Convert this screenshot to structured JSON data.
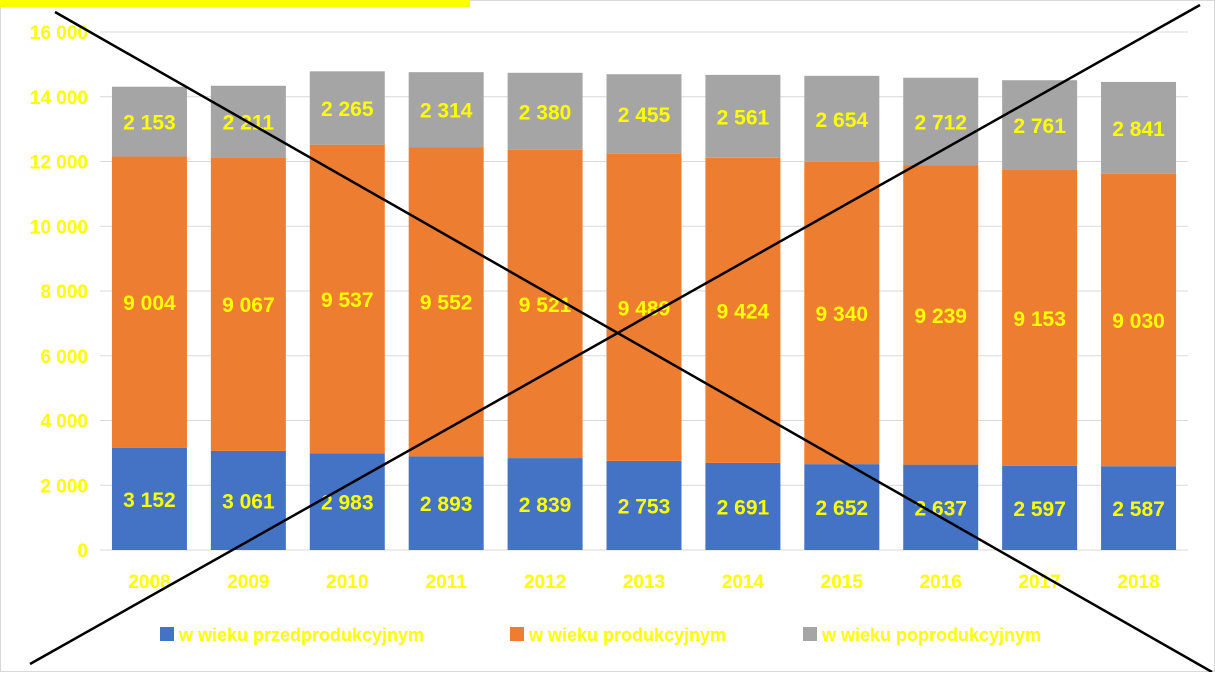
{
  "chart_data": {
    "type": "bar",
    "stacked": true,
    "categories": [
      "2008",
      "2009",
      "2010",
      "2011",
      "2012",
      "2013",
      "2014",
      "2015",
      "2016",
      "2017",
      "2018"
    ],
    "series": [
      {
        "name": "w wieku przedprodukcyjnym",
        "color": "#4472c4",
        "values": [
          3152,
          3061,
          2983,
          2893,
          2839,
          2753,
          2691,
          2652,
          2637,
          2597,
          2587
        ]
      },
      {
        "name": "w wieku produkcyjnym",
        "color": "#ed7d31",
        "values": [
          9004,
          9067,
          9537,
          9552,
          9521,
          9489,
          9424,
          9340,
          9239,
          9153,
          9030
        ]
      },
      {
        "name": "w wieku poprodukcyjnym",
        "color": "#a5a5a5",
        "values": [
          2153,
          2211,
          2265,
          2314,
          2380,
          2455,
          2561,
          2654,
          2712,
          2761,
          2841
        ]
      }
    ],
    "value_labels": [
      [
        "3 152",
        "3 061",
        "2 983",
        "2 893",
        "2 839",
        "2 753",
        "2 691",
        "2 652",
        "2 637",
        "2 597",
        "2 587"
      ],
      [
        "9 004",
        "9 067",
        "9 537",
        "9 552",
        "9 521",
        "9 489",
        "9 424",
        "9 340",
        "9 239",
        "9 153",
        "9 030"
      ],
      [
        "2 153",
        "2 211",
        "2 265",
        "2 314",
        "2 380",
        "2 455",
        "2 561",
        "2 654",
        "2 712",
        "2 761",
        "2 841"
      ]
    ],
    "y_ticks": [
      0,
      2000,
      4000,
      6000,
      8000,
      10000,
      12000,
      14000,
      16000
    ],
    "y_tick_labels": [
      "0",
      "2 000",
      "4 000",
      "6 000",
      "8 000",
      "10 000",
      "12 000",
      "14 000",
      "16 000"
    ],
    "ylim": [
      0,
      16000
    ],
    "grid": true,
    "legend_position": "bottom",
    "label_color": "#ffff00",
    "gridline_color": "#d9d9d9",
    "overlay": "cross-out"
  }
}
